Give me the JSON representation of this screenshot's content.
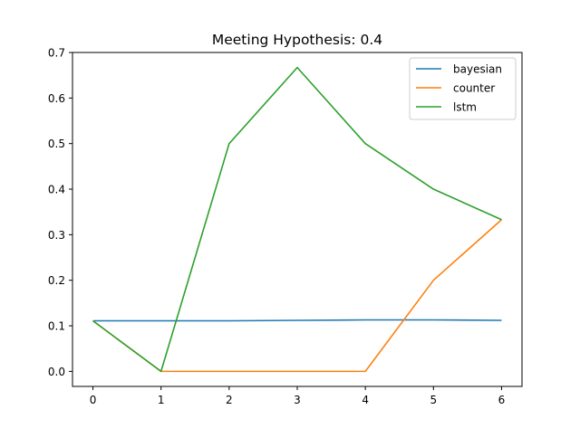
{
  "chart_data": {
    "type": "line",
    "title": "Meeting Hypothesis: 0.4",
    "xlabel": "",
    "ylabel": "",
    "x": [
      0,
      1,
      2,
      3,
      4,
      5,
      6
    ],
    "xticks": [
      "0",
      "1",
      "2",
      "3",
      "4",
      "5",
      "6"
    ],
    "yticks": [
      "0.0",
      "0.1",
      "0.2",
      "0.3",
      "0.4",
      "0.5",
      "0.6",
      "0.7"
    ],
    "xlim": [
      -0.3,
      6.3
    ],
    "ylim": [
      -0.033,
      0.7
    ],
    "grid": false,
    "legend_position": "top-right",
    "series": [
      {
        "name": "bayesian",
        "color": "#1f77b4",
        "values": [
          0.111,
          0.111,
          0.111,
          0.112,
          0.113,
          0.113,
          0.112
        ]
      },
      {
        "name": "counter",
        "color": "#ff7f0e",
        "values": [
          0.111,
          0.0,
          0.0,
          0.0,
          0.0,
          0.2,
          0.333
        ]
      },
      {
        "name": "lstm",
        "color": "#2ca02c",
        "values": [
          0.111,
          0.0,
          0.5,
          0.667,
          0.5,
          0.4,
          0.333
        ]
      }
    ]
  }
}
